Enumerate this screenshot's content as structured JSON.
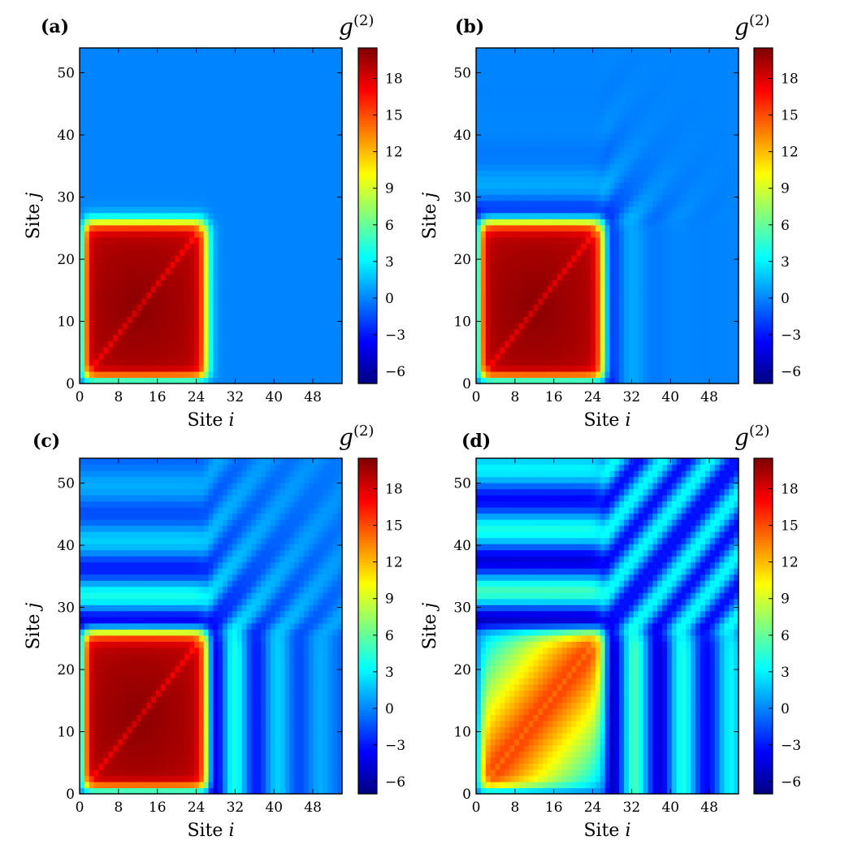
{
  "chart_data": [
    {
      "type": "heatmap",
      "panel_label": "(a)",
      "xlabel": "Site i",
      "ylabel": "Site j",
      "xlim": [
        0,
        54
      ],
      "ylim": [
        0,
        54
      ],
      "xticks": [
        0,
        8,
        16,
        24,
        32,
        40,
        48
      ],
      "yticks": [
        0,
        10,
        20,
        30,
        40,
        50
      ],
      "colorbar": {
        "title": "g(2)",
        "min": -7,
        "max": 20.5,
        "ticks": [
          18,
          15,
          12,
          9,
          6,
          3,
          0,
          -3,
          -6
        ],
        "colormap": "jet"
      },
      "features": {
        "block_value": 19,
        "block_extent": [
          0,
          26
        ],
        "background": 0,
        "fringe_amplitude": 0
      }
    },
    {
      "type": "heatmap",
      "panel_label": "(b)",
      "xlabel": "Site i",
      "ylabel": "Site j",
      "xlim": [
        0,
        54
      ],
      "ylim": [
        0,
        54
      ],
      "xticks": [
        0,
        8,
        16,
        24,
        32,
        40,
        48
      ],
      "yticks": [
        0,
        10,
        20,
        30,
        40,
        50
      ],
      "colorbar": {
        "title": "g(2)",
        "min": -7,
        "max": 20.5,
        "ticks": [
          18,
          15,
          12,
          9,
          6,
          3,
          0,
          -3,
          -6
        ],
        "colormap": "jet"
      },
      "features": {
        "block_value": 19,
        "block_extent": [
          0,
          26
        ],
        "background": 0,
        "fringe_amplitude": 5
      }
    },
    {
      "type": "heatmap",
      "panel_label": "(c)",
      "xlabel": "Site i",
      "ylabel": "Site j",
      "xlim": [
        0,
        54
      ],
      "ylim": [
        0,
        54
      ],
      "xticks": [
        0,
        8,
        16,
        24,
        32,
        40,
        48
      ],
      "yticks": [
        0,
        10,
        20,
        30,
        40,
        50
      ],
      "colorbar": {
        "title": "g(2)",
        "min": -7,
        "max": 20.5,
        "ticks": [
          18,
          15,
          12,
          9,
          6,
          3,
          0,
          -3,
          -6
        ],
        "colormap": "jet"
      },
      "features": {
        "block_value": 19,
        "block_extent": [
          0,
          26
        ],
        "background": 0,
        "fringe_amplitude": 6
      }
    },
    {
      "type": "heatmap",
      "panel_label": "(d)",
      "xlabel": "Site i",
      "ylabel": "Site j",
      "xlim": [
        0,
        54
      ],
      "ylim": [
        0,
        54
      ],
      "xticks": [
        0,
        8,
        16,
        24,
        32,
        40,
        48
      ],
      "yticks": [
        0,
        10,
        20,
        30,
        40,
        50
      ],
      "colorbar": {
        "title": "g(2)",
        "min": -7,
        "max": 20.5,
        "ticks": [
          18,
          15,
          12,
          9,
          6,
          3,
          0,
          -3,
          -6
        ],
        "colormap": "jet"
      },
      "features": {
        "block_value": 16,
        "block_extent": [
          0,
          26
        ],
        "background": 0,
        "fringe_amplitude": 6
      }
    }
  ]
}
